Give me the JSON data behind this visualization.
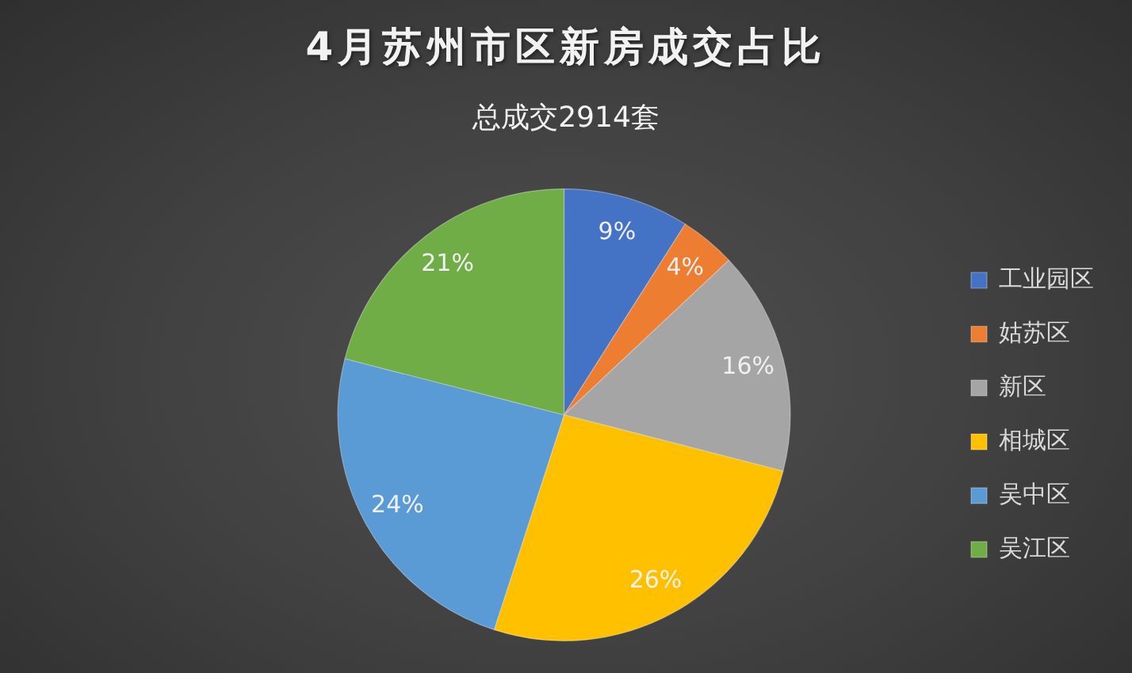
{
  "chart_data": {
    "type": "pie",
    "title": "4月苏州市区新房成交占比",
    "subtitle": "总成交2914套",
    "categories": [
      "工业园区",
      "姑苏区",
      "新区",
      "相城区",
      "吴中区",
      "吴江区"
    ],
    "values": [
      9,
      4,
      16,
      26,
      24,
      21
    ],
    "colors": [
      "#4472c4",
      "#ed7d31",
      "#a5a5a5",
      "#ffc000",
      "#5b9bd5",
      "#70ad47"
    ],
    "value_labels": [
      "9%",
      "4%",
      "16%",
      "26%",
      "24%",
      "21%"
    ],
    "legend": "right"
  }
}
